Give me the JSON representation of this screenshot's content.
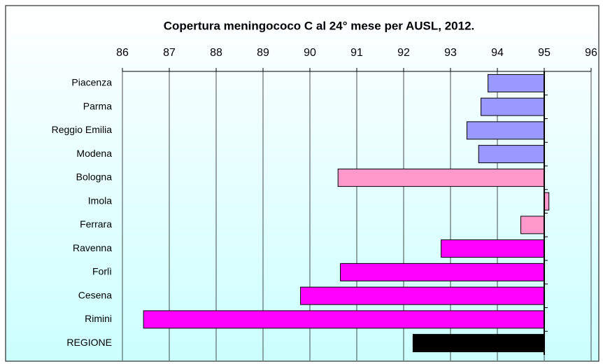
{
  "chart_data": {
    "type": "barh",
    "title": "Copertura meningococo C al 24° mese per AUSL, 2012.",
    "categories": [
      "Piacenza",
      "Parma",
      "Reggio Emilia",
      "Modena",
      "Bologna",
      "Imola",
      "Ferrara",
      "Ravenna",
      "Forlì",
      "Cesena",
      "Rimini",
      "REGIONE"
    ],
    "values": [
      93.8,
      93.65,
      93.35,
      93.6,
      90.6,
      95.1,
      94.5,
      92.8,
      90.65,
      89.8,
      86.45,
      92.2
    ],
    "colors": [
      "#9999ff",
      "#9999ff",
      "#9999ff",
      "#9999ff",
      "#ff99cc",
      "#ff99cc",
      "#ff99cc",
      "#ff00ff",
      "#ff00ff",
      "#ff00ff",
      "#ff00ff",
      "#000000"
    ],
    "bar_base": 95,
    "xlim": [
      86,
      96
    ],
    "xticks": [
      86,
      87,
      88,
      89,
      90,
      91,
      92,
      93,
      94,
      95,
      96
    ],
    "grid": true
  }
}
